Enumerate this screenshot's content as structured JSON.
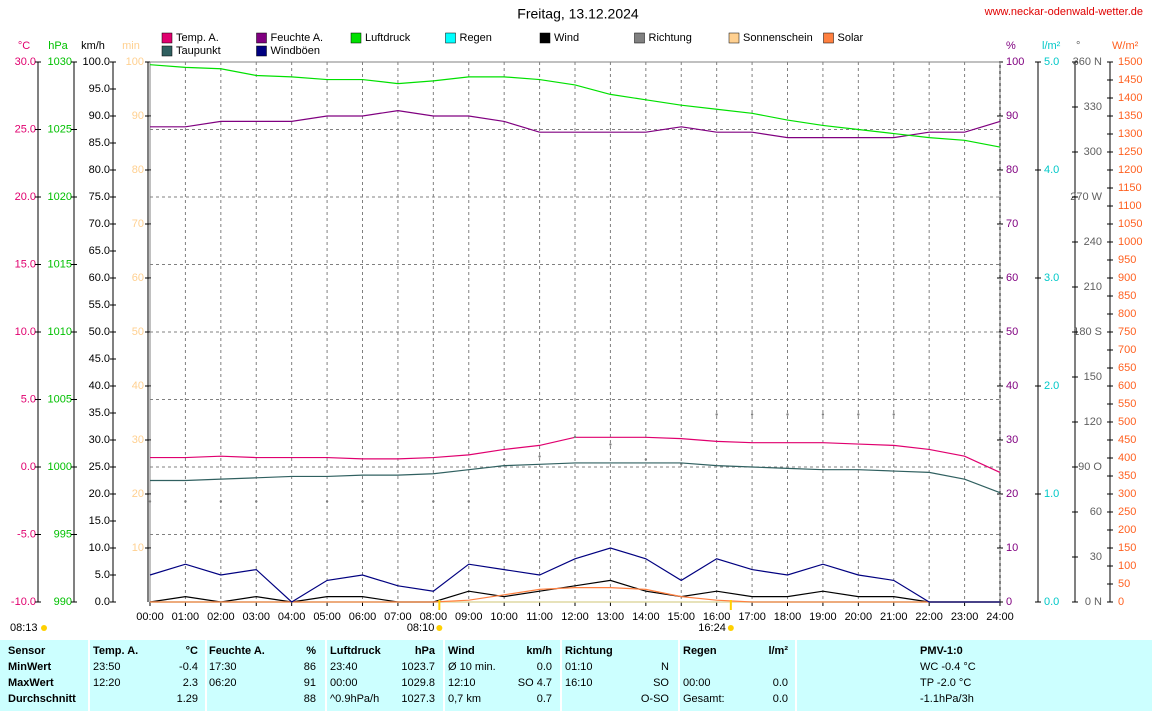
{
  "chart_data": {
    "type": "line",
    "title": "Freitag, 13.12.2024",
    "source": "www.neckar-odenwald-wetter.de",
    "xlim": [
      0,
      24
    ],
    "xticks": [
      {
        "value": 0,
        "label": "00:00"
      },
      {
        "value": 1,
        "label": "01:00"
      },
      {
        "value": 2,
        "label": "02:00"
      },
      {
        "value": 3,
        "label": "03:00"
      },
      {
        "value": 4,
        "label": "04:00"
      },
      {
        "value": 5,
        "label": "05:00"
      },
      {
        "value": 6,
        "label": "06:00"
      },
      {
        "value": 7,
        "label": "07:00"
      },
      {
        "value": 8,
        "label": "08:00"
      },
      {
        "value": 9,
        "label": "09:00"
      },
      {
        "value": 10,
        "label": "10:00"
      },
      {
        "value": 11,
        "label": "11:00"
      },
      {
        "value": 12,
        "label": "12:00"
      },
      {
        "value": 13,
        "label": "13:00"
      },
      {
        "value": 14,
        "label": "14:00"
      },
      {
        "value": 15,
        "label": "15:00"
      },
      {
        "value": 16,
        "label": "16:00"
      },
      {
        "value": 17,
        "label": "17:00"
      },
      {
        "value": 18,
        "label": "18:00"
      },
      {
        "value": 19,
        "label": "19:00"
      },
      {
        "value": 20,
        "label": "20:00"
      },
      {
        "value": 21,
        "label": "21:00"
      },
      {
        "value": 22,
        "label": "22:00"
      },
      {
        "value": 23,
        "label": "23:00"
      },
      {
        "value": 24,
        "label": "24:00"
      }
    ],
    "grid": true,
    "grid_axis": "temp",
    "axes": [
      {
        "id": "temp",
        "unit": "°C",
        "side": "left",
        "color": "#e0006f",
        "lim": [
          -10,
          30
        ],
        "ticks": [
          {
            "value": 30,
            "label": "30.0"
          },
          {
            "value": 25,
            "label": "25.0"
          },
          {
            "value": 20,
            "label": "20.0"
          },
          {
            "value": 15,
            "label": "15.0"
          },
          {
            "value": 10,
            "label": "10.0"
          },
          {
            "value": 5,
            "label": "5.0"
          },
          {
            "value": 0,
            "label": "0.0"
          },
          {
            "value": -5,
            "label": "-5.0"
          },
          {
            "value": -10,
            "label": "-10.0"
          }
        ]
      },
      {
        "id": "hpa",
        "unit": "hPa",
        "side": "left",
        "color": "#00c000",
        "lim": [
          990,
          1030
        ],
        "ticks": [
          1030,
          1025,
          1020,
          1015,
          1010,
          1005,
          1000,
          995,
          990
        ]
      },
      {
        "id": "kmh",
        "unit": "km/h",
        "side": "left",
        "color": "#000000",
        "lim": [
          0,
          100
        ],
        "ticks": [
          {
            "value": 100,
            "label": "100.0"
          },
          {
            "value": 95,
            "label": "95.0"
          },
          {
            "value": 90,
            "label": "90.0"
          },
          {
            "value": 85,
            "label": "85.0"
          },
          {
            "value": 80,
            "label": "80.0"
          },
          {
            "value": 75,
            "label": "75.0"
          },
          {
            "value": 70,
            "label": "70.0"
          },
          {
            "value": 65,
            "label": "65.0"
          },
          {
            "value": 60,
            "label": "60.0"
          },
          {
            "value": 55,
            "label": "55.0"
          },
          {
            "value": 50,
            "label": "50.0"
          },
          {
            "value": 45,
            "label": "45.0"
          },
          {
            "value": 40,
            "label": "40.0"
          },
          {
            "value": 35,
            "label": "35.0"
          },
          {
            "value": 30,
            "label": "30.0"
          },
          {
            "value": 25,
            "label": "25.0"
          },
          {
            "value": 20,
            "label": "20.0"
          },
          {
            "value": 15,
            "label": "15.0"
          },
          {
            "value": 10,
            "label": "10.0"
          },
          {
            "value": 5,
            "label": "5.0"
          },
          {
            "value": 0,
            "label": "0.0"
          }
        ]
      },
      {
        "id": "min",
        "unit": "min",
        "side": "left",
        "color": "#ffd090",
        "lim": [
          0,
          100
        ],
        "ticks": [
          100,
          90,
          80,
          70,
          60,
          50,
          40,
          30,
          20,
          10
        ]
      },
      {
        "id": "pct",
        "unit": "%",
        "side": "right",
        "color": "#800080",
        "lim": [
          0,
          100
        ],
        "ticks": [
          100,
          90,
          80,
          70,
          60,
          50,
          40,
          30,
          20,
          10,
          0
        ]
      },
      {
        "id": "rain",
        "unit": "l/m²",
        "side": "right",
        "color": "#00c8c8",
        "lim": [
          0,
          5
        ],
        "ticks": [
          {
            "value": 5,
            "label": "5.0"
          },
          {
            "value": 4,
            "label": "4.0"
          },
          {
            "value": 3,
            "label": "3.0"
          },
          {
            "value": 2,
            "label": "2.0"
          },
          {
            "value": 1,
            "label": "1.0"
          },
          {
            "value": 0,
            "label": "0.0"
          }
        ]
      },
      {
        "id": "deg",
        "unit": "°",
        "side": "right",
        "color": "#606060",
        "lim": [
          0,
          360
        ],
        "ticks": [
          {
            "value": 360,
            "label": "360 N"
          },
          330,
          300,
          {
            "value": 270,
            "label": "270 W"
          },
          240,
          210,
          {
            "value": 180,
            "label": "180 S"
          },
          150,
          120,
          {
            "value": 90,
            "label": "90 O"
          },
          60,
          30,
          {
            "value": 0,
            "label": "0 N"
          }
        ]
      },
      {
        "id": "wm2",
        "unit": "W/m²",
        "side": "right",
        "color": "#ff6020",
        "lim": [
          0,
          1500
        ],
        "ticks": [
          1500,
          1450,
          1400,
          1350,
          1300,
          1250,
          1200,
          1150,
          1100,
          1050,
          1000,
          950,
          900,
          850,
          800,
          750,
          700,
          650,
          600,
          550,
          500,
          450,
          400,
          350,
          300,
          250,
          200,
          150,
          100,
          50,
          0
        ]
      }
    ],
    "x": [
      0,
      1,
      2,
      3,
      4,
      5,
      6,
      7,
      8,
      9,
      10,
      11,
      12,
      13,
      14,
      15,
      16,
      17,
      18,
      19,
      20,
      21,
      22,
      23,
      24
    ],
    "series": [
      {
        "name": "Temp. A.",
        "color": "#e0006f",
        "axis": "temp",
        "style": "line",
        "values": [
          0.7,
          0.7,
          0.8,
          0.7,
          0.7,
          0.7,
          0.6,
          0.6,
          0.7,
          0.9,
          1.3,
          1.6,
          2.2,
          2.2,
          2.2,
          2.1,
          1.9,
          1.8,
          1.8,
          1.8,
          1.7,
          1.6,
          1.3,
          0.8,
          -0.4
        ]
      },
      {
        "name": "Feuchte A.",
        "color": "#800080",
        "axis": "pct",
        "style": "line",
        "values": [
          88,
          88,
          89,
          89,
          89,
          90,
          90,
          91,
          90,
          90,
          89,
          87,
          87,
          87,
          87,
          88,
          87,
          87,
          86,
          86,
          86,
          86,
          87,
          87,
          89
        ]
      },
      {
        "name": "Luftdruck",
        "color": "#00e000",
        "axis": "hpa",
        "style": "line",
        "values": [
          1029.8,
          1029.6,
          1029.5,
          1029.0,
          1028.9,
          1028.7,
          1028.7,
          1028.4,
          1028.6,
          1028.9,
          1028.9,
          1028.7,
          1028.3,
          1027.6,
          1027.2,
          1026.8,
          1026.5,
          1026.2,
          1025.7,
          1025.3,
          1025.0,
          1024.7,
          1024.4,
          1024.2,
          1023.7
        ]
      },
      {
        "name": "Regen",
        "color": "#00ffff",
        "axis": "rain",
        "style": "line",
        "values": [
          0,
          0,
          0,
          0,
          0,
          0,
          0,
          0,
          0,
          0,
          0,
          0,
          0,
          0,
          0,
          0,
          0,
          0,
          0,
          0,
          0,
          0,
          0,
          0,
          0
        ]
      },
      {
        "name": "Wind",
        "color": "#000000",
        "axis": "kmh",
        "style": "line",
        "values": [
          0,
          1,
          0,
          1,
          0,
          1,
          1,
          0,
          0,
          2,
          1,
          2,
          3,
          4,
          2,
          1,
          2,
          1,
          1,
          2,
          1,
          1,
          0,
          0,
          0
        ]
      },
      {
        "name": "Richtung",
        "color": "#808080",
        "axis": "deg",
        "style": "dots",
        "values": [
          67,
          67,
          67,
          67,
          null,
          67,
          67,
          null,
          67,
          67,
          95,
          97,
          110,
          105,
          95,
          92,
          125,
          125,
          125,
          125,
          125,
          125,
          null,
          null,
          null
        ]
      },
      {
        "name": "Sonnenschein",
        "color": "#ffd090",
        "axis": "min",
        "style": "line",
        "values": [
          0,
          0,
          0,
          0,
          0,
          0,
          0,
          0,
          0,
          0,
          0,
          0,
          0,
          0,
          0,
          0,
          0,
          0,
          0,
          0,
          0,
          0,
          0,
          0,
          0
        ]
      },
      {
        "name": "Solar",
        "color": "#ff8040",
        "axis": "wm2",
        "style": "line",
        "values": [
          0,
          0,
          0,
          0,
          0,
          0,
          0,
          0,
          0,
          5,
          20,
          35,
          40,
          40,
          35,
          15,
          5,
          0,
          0,
          0,
          0,
          0,
          0,
          0,
          0
        ]
      },
      {
        "name": "Taupunkt",
        "color": "#306060",
        "axis": "temp",
        "style": "line",
        "values": [
          -1.0,
          -1.0,
          -0.9,
          -0.8,
          -0.7,
          -0.7,
          -0.6,
          -0.6,
          -0.5,
          -0.2,
          0.1,
          0.2,
          0.3,
          0.3,
          0.3,
          0.3,
          0.1,
          0.0,
          -0.1,
          -0.2,
          -0.2,
          -0.3,
          -0.4,
          -0.9,
          -1.9
        ]
      },
      {
        "name": "Windböen",
        "color": "#000080",
        "axis": "kmh",
        "style": "line",
        "values": [
          5,
          7,
          5,
          6,
          0,
          4,
          5,
          3,
          2,
          7,
          6,
          5,
          8,
          10,
          8,
          4,
          8,
          6,
          5,
          7,
          5,
          4,
          0,
          0,
          0
        ]
      }
    ],
    "corner_label": "08:13",
    "sun_marks": [
      {
        "x": 8.17,
        "label": "08:10"
      },
      {
        "x": 16.4,
        "label": "16:24"
      }
    ]
  },
  "table": {
    "header": [
      [
        "Sensor",
        null
      ],
      [
        "Temp. A.",
        "°C"
      ],
      [
        "Feuchte A.",
        "%"
      ],
      [
        "Luftdruck",
        "hPa"
      ],
      [
        "Wind",
        "km/h"
      ],
      [
        "Richtung",
        null
      ],
      [
        "Regen",
        "l/m²"
      ],
      [
        "PMV-1:0",
        null
      ]
    ],
    "rows": [
      [
        [
          "MinWert",
          null
        ],
        [
          "23:50",
          "-0.4"
        ],
        [
          "17:30",
          "86"
        ],
        [
          "23:40",
          "1023.7"
        ],
        [
          "Ø 10 min.",
          "0.0"
        ],
        [
          "01:10",
          "N"
        ],
        [
          null,
          null
        ],
        [
          "WC -0.4 °C",
          null
        ]
      ],
      [
        [
          "MaxWert",
          null
        ],
        [
          "12:20",
          "2.3"
        ],
        [
          "06:20",
          "91"
        ],
        [
          "00:00",
          "1029.8"
        ],
        [
          "12:10",
          "SO 4.7"
        ],
        [
          "16:10",
          "SO"
        ],
        [
          "00:00",
          "0.0"
        ],
        [
          "TP -2.0 °C",
          null
        ]
      ],
      [
        [
          "Durchschnitt",
          null
        ],
        [
          null,
          "1.29"
        ],
        [
          null,
          "88"
        ],
        [
          "^0.9hPa/h",
          "1027.3"
        ],
        [
          "0,7 km",
          "0.7"
        ],
        [
          null,
          "O-SO"
        ],
        [
          "Gesamt:",
          "0.0"
        ],
        [
          "-1.1hPa/3h",
          null
        ]
      ]
    ]
  }
}
